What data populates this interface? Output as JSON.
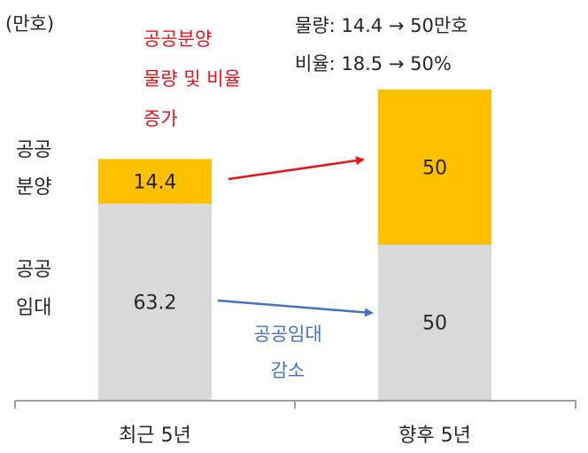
{
  "chart_data": {
    "type": "bar",
    "stacked": true,
    "unit_label": "(만호)",
    "categories": [
      "최근 5년",
      "향후 5년"
    ],
    "series": [
      {
        "name": "공공임대",
        "name_lines": [
          "공공",
          "임대"
        ],
        "values": [
          63.2,
          50
        ],
        "color": "#d9d9d9"
      },
      {
        "name": "공공분양",
        "name_lines": [
          "공공",
          "분양"
        ],
        "values": [
          14.4,
          50
        ],
        "color": "#ffc000"
      }
    ],
    "value_labels": [
      [
        "63.2",
        "50"
      ],
      [
        "14.4",
        "50"
      ]
    ],
    "ylim": [
      0,
      100
    ],
    "grid": false,
    "legend": "left",
    "annotations": {
      "top_right": [
        "물량: 14.4 → 50만호",
        "비율: 18.5 → 50%"
      ],
      "red_note": [
        "공공분양",
        "물량 및 비율",
        "증가"
      ],
      "blue_note": [
        "공공임대",
        "감소"
      ],
      "red_color": "#e8141c",
      "blue_color": "#4472c4"
    }
  }
}
